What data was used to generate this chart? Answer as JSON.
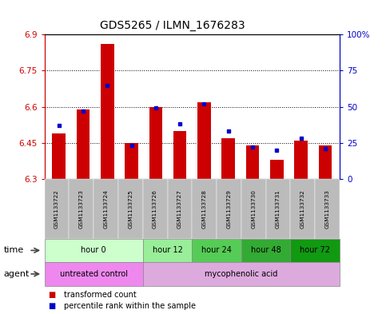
{
  "title": "GDS5265 / ILMN_1676283",
  "samples": [
    "GSM1133722",
    "GSM1133723",
    "GSM1133724",
    "GSM1133725",
    "GSM1133726",
    "GSM1133727",
    "GSM1133728",
    "GSM1133729",
    "GSM1133730",
    "GSM1133731",
    "GSM1133732",
    "GSM1133733"
  ],
  "transformed_count": [
    6.49,
    6.59,
    6.86,
    6.45,
    6.6,
    6.5,
    6.62,
    6.47,
    6.44,
    6.38,
    6.46,
    6.44
  ],
  "percentile_rank": [
    37,
    47,
    65,
    23,
    49,
    38,
    52,
    33,
    22,
    20,
    28,
    21
  ],
  "ymin": 6.3,
  "ymax": 6.9,
  "yticks": [
    6.3,
    6.45,
    6.6,
    6.75,
    6.9
  ],
  "ytick_labels": [
    "6.3",
    "6.45",
    "6.6",
    "6.75",
    "6.9"
  ],
  "y2ticks": [
    0,
    25,
    50,
    75,
    100
  ],
  "y2tick_labels": [
    "0",
    "25",
    "50",
    "75",
    "100%"
  ],
  "bar_color": "#cc0000",
  "blue_color": "#0000cc",
  "sample_bg": "#bbbbbb",
  "legend_items": [
    "transformed count",
    "percentile rank within the sample"
  ],
  "time_groups": [
    {
      "label": "hour 0",
      "cols": [
        0,
        1,
        2,
        3
      ],
      "color": "#ccffcc"
    },
    {
      "label": "hour 12",
      "cols": [
        4,
        5
      ],
      "color": "#99ee99"
    },
    {
      "label": "hour 24",
      "cols": [
        6,
        7
      ],
      "color": "#55cc55"
    },
    {
      "label": "hour 48",
      "cols": [
        8,
        9
      ],
      "color": "#33aa33"
    },
    {
      "label": "hour 72",
      "cols": [
        10,
        11
      ],
      "color": "#119911"
    }
  ],
  "agent_groups": [
    {
      "label": "untreated control",
      "cols": [
        0,
        1,
        2,
        3
      ],
      "color": "#ee88ee"
    },
    {
      "label": "mycophenolic acid",
      "cols": [
        4,
        5,
        6,
        7,
        8,
        9,
        10,
        11
      ],
      "color": "#ddaadd"
    }
  ]
}
